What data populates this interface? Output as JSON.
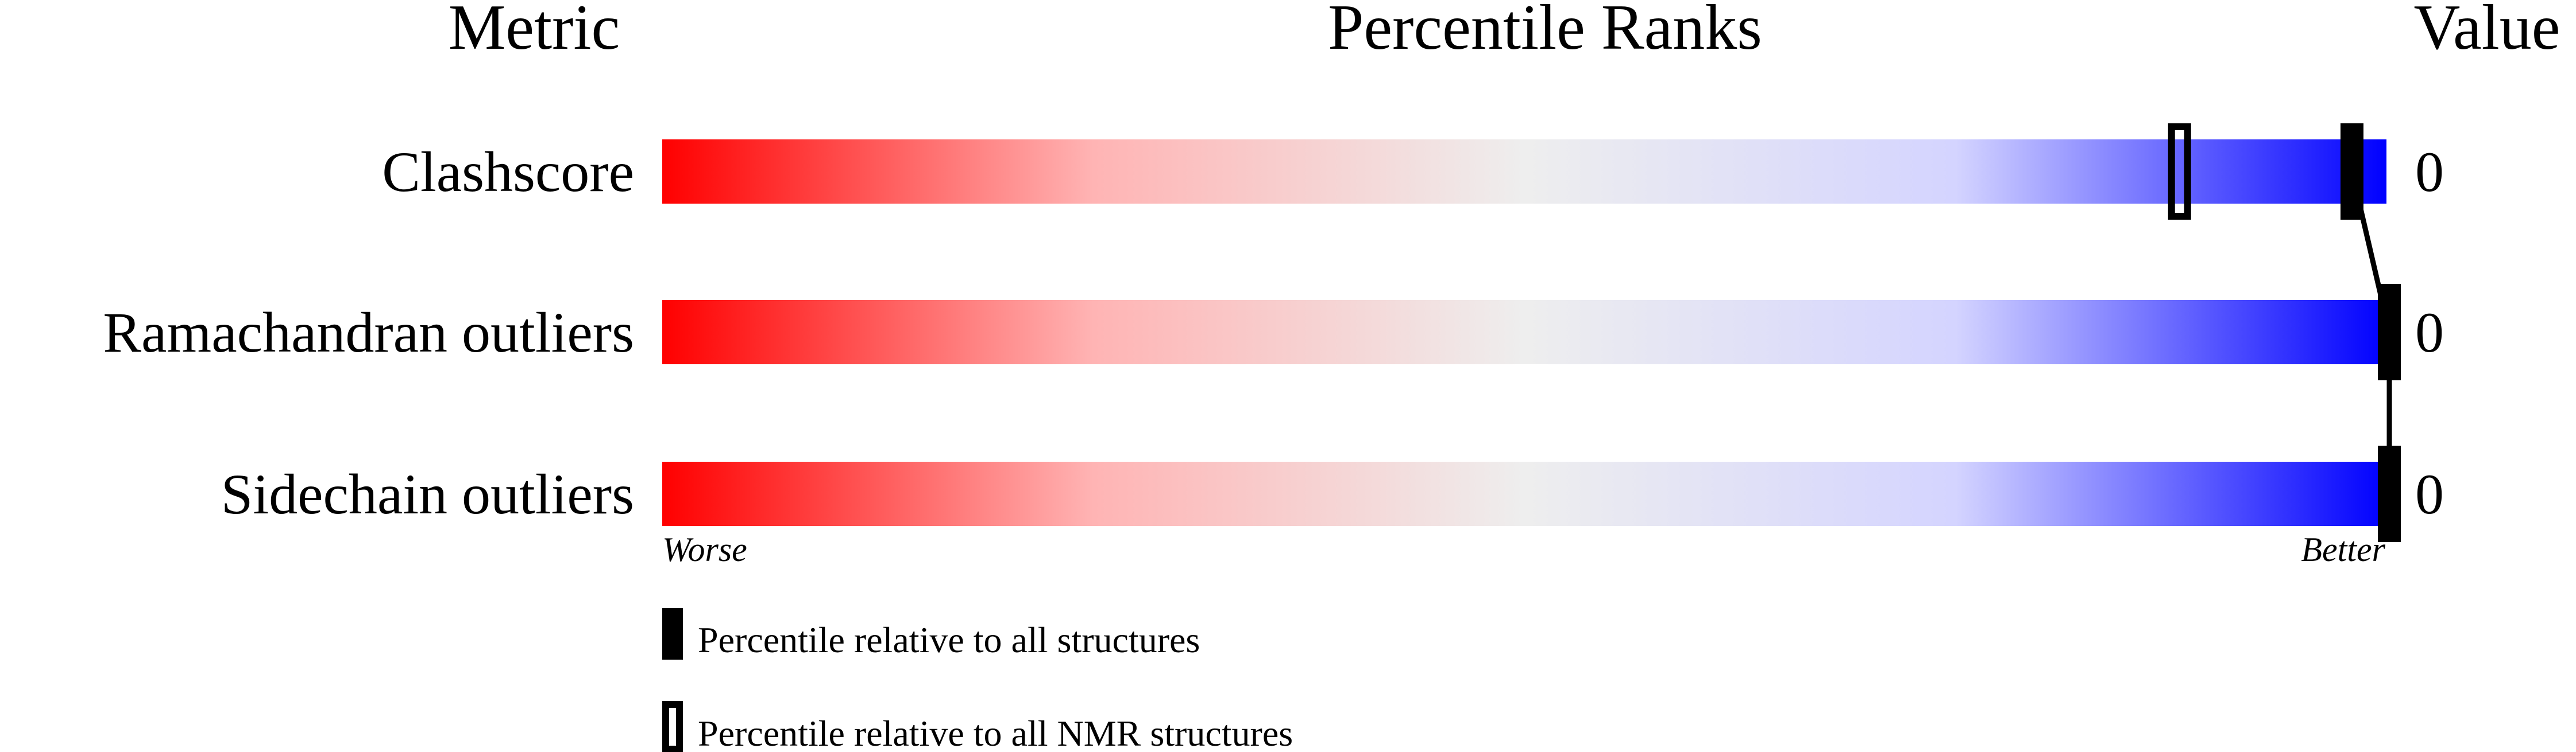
{
  "chart_data": {
    "type": "bar",
    "title": "Percentile Ranks",
    "column_headers": {
      "metric": "Metric",
      "ranks": "Percentile Ranks",
      "value": "Value"
    },
    "xlim": [
      0,
      100
    ],
    "scale_labels": {
      "low": "Worse",
      "high": "Better"
    },
    "gradient_colors": [
      "#ff0000",
      "#ffb4b4",
      "#eeeeee",
      "#d4d4ff",
      "#0000ff"
    ],
    "metrics": [
      {
        "name": "Clashscore",
        "value": "0",
        "percentile_all": 98,
        "percentile_nmr": 88
      },
      {
        "name": "Ramachandran outliers",
        "value": "0",
        "percentile_all": 100,
        "percentile_nmr": null
      },
      {
        "name": "Sidechain outliers",
        "value": "0",
        "percentile_all": 100,
        "percentile_nmr": null
      }
    ],
    "legend": {
      "all": "Percentile relative to all structures",
      "nmr": "Percentile relative to all NMR structures"
    }
  }
}
